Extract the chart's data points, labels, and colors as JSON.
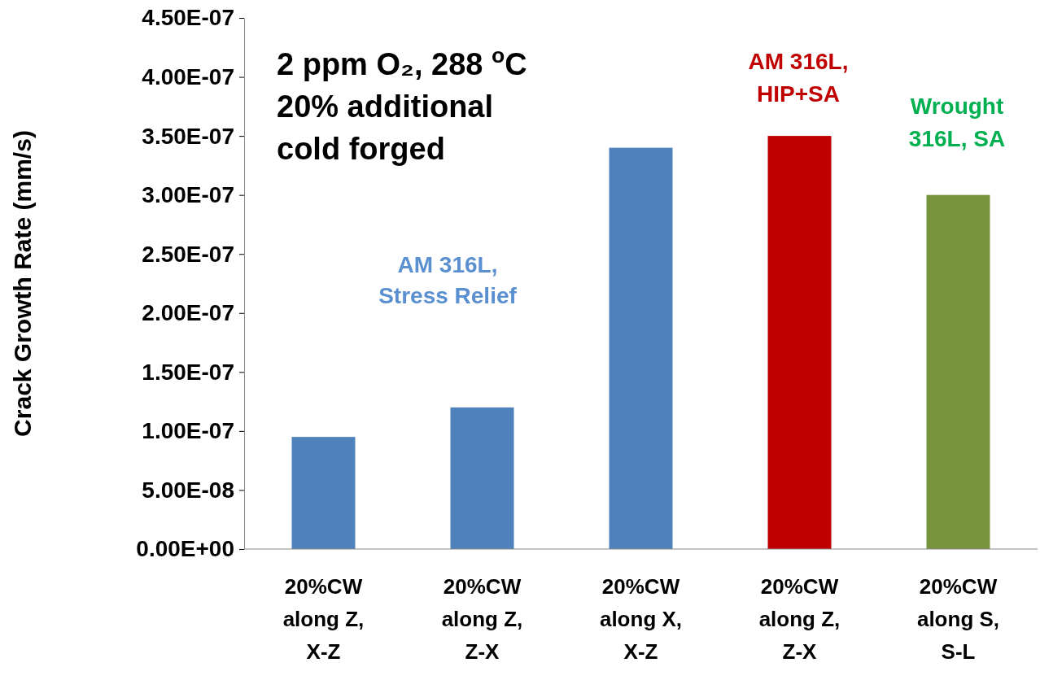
{
  "chart_data": {
    "type": "bar",
    "ylabel": "Crack Growth Rate (mm/s)",
    "categories": [
      "20%CW\nalong Z,\nX-Z",
      "20%CW\nalong Z,\nZ-X",
      "20%CW\nalong X,\nX-Z",
      "20%CW\nalong Z,\nZ-X",
      "20%CW\nalong S,\nS-L"
    ],
    "values": [
      9.5e-08,
      1.2e-07,
      3.4e-07,
      3.5e-07,
      3e-07
    ],
    "colors": [
      "#4f81bd",
      "#4f81bd",
      "#4f81bd",
      "#c00000",
      "#77933c"
    ],
    "ylim": [
      0,
      4.5e-07
    ],
    "yticks": [
      {
        "value": 0,
        "label": "0.00E+00"
      },
      {
        "value": 5e-08,
        "label": "5.00E-08"
      },
      {
        "value": 1e-07,
        "label": "1.00E-07"
      },
      {
        "value": 1.5e-07,
        "label": "1.50E-07"
      },
      {
        "value": 2e-07,
        "label": "2.00E-07"
      },
      {
        "value": 2.5e-07,
        "label": "2.50E-07"
      },
      {
        "value": 3e-07,
        "label": "3.00E-07"
      },
      {
        "value": 3.5e-07,
        "label": "3.50E-07"
      },
      {
        "value": 4e-07,
        "label": "4.00E-07"
      },
      {
        "value": 4.5e-07,
        "label": "4.50E-07"
      }
    ],
    "annotations": [
      "2 ppm O₂, 288 $^{o}$C\n20% additional\ncold forged",
      "AM 316L,\nStress Relief",
      "AM 316L,\nHIP+SA",
      "Wrought\n316L, SA"
    ]
  }
}
